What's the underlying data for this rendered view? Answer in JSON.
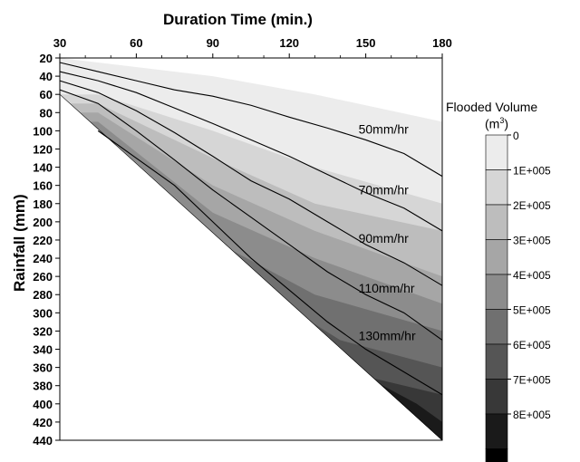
{
  "chart_data": {
    "type": "contour",
    "title": "Duration Time (min.)",
    "xlabel": "Duration Time (min.)",
    "ylabel": "Rainfall (mm)",
    "x_ticks": [
      30,
      60,
      90,
      120,
      150,
      180
    ],
    "y_ticks": [
      20,
      40,
      60,
      80,
      100,
      120,
      140,
      160,
      180,
      200,
      220,
      240,
      260,
      280,
      300,
      320,
      340,
      360,
      380,
      400,
      420,
      440
    ],
    "xlim": [
      30,
      180
    ],
    "ylim": [
      20,
      440
    ],
    "x_axis_position": "top",
    "y_axis_inverted": true,
    "legend": {
      "title": "Flooded Volume",
      "unit": "(m",
      "unit_sup": "3",
      "unit_close": ")",
      "position": "right",
      "levels": [
        "0",
        "1E+005",
        "2E+005",
        "3E+005",
        "4E+005",
        "5E+005",
        "6E+005",
        "7E+005",
        "8E+005"
      ],
      "colors": [
        "#ececec",
        "#d6d6d6",
        "#bdbdbd",
        "#a6a6a6",
        "#8c8c8c",
        "#707070",
        "#555555",
        "#383838",
        "#1a1a1a",
        "#000000"
      ]
    },
    "filled_bands": [
      {
        "level": 0,
        "color": "#ececec",
        "upper": [
          [
            30,
            20
          ],
          [
            90,
            40
          ],
          [
            130,
            60
          ],
          [
            180,
            90
          ]
        ]
      },
      {
        "level": 1,
        "color": "#d6d6d6",
        "upper": [
          [
            45,
            60
          ],
          [
            90,
            100
          ],
          [
            130,
            140
          ],
          [
            180,
            180
          ]
        ]
      },
      {
        "level": 2,
        "color": "#bdbdbd",
        "upper": [
          [
            45,
            70
          ],
          [
            90,
            130
          ],
          [
            130,
            180
          ],
          [
            180,
            210
          ]
        ]
      },
      {
        "level": 3,
        "color": "#a6a6a6",
        "upper": [
          [
            45,
            80
          ],
          [
            90,
            160
          ],
          [
            130,
            210
          ],
          [
            180,
            260
          ]
        ]
      },
      {
        "level": 4,
        "color": "#8c8c8c",
        "upper": [
          [
            45,
            90
          ],
          [
            90,
            190
          ],
          [
            130,
            240
          ],
          [
            180,
            290
          ]
        ]
      },
      {
        "level": 5,
        "color": "#707070",
        "upper": [
          [
            50,
            110
          ],
          [
            90,
            220
          ],
          [
            130,
            280
          ],
          [
            180,
            320
          ]
        ]
      },
      {
        "level": 6,
        "color": "#555555",
        "upper": [
          [
            60,
            140
          ],
          [
            100,
            260
          ],
          [
            140,
            330
          ],
          [
            180,
            360
          ]
        ]
      },
      {
        "level": 7,
        "color": "#383838",
        "upper": [
          [
            80,
            210
          ],
          [
            120,
            320
          ],
          [
            150,
            370
          ],
          [
            180,
            390
          ]
        ]
      },
      {
        "level": 8,
        "color": "#1a1a1a",
        "upper": [
          [
            120,
            320
          ],
          [
            150,
            370
          ],
          [
            170,
            400
          ],
          [
            180,
            420
          ]
        ]
      }
    ],
    "isolines": [
      {
        "name": "50mm/hr",
        "points": [
          [
            30,
            25
          ],
          [
            45,
            35
          ],
          [
            60,
            45
          ],
          [
            75,
            55
          ],
          [
            90,
            62
          ],
          [
            105,
            72
          ],
          [
            120,
            85
          ],
          [
            135,
            97
          ],
          [
            150,
            110
          ],
          [
            165,
            125
          ],
          [
            180,
            150
          ]
        ]
      },
      {
        "name": "70mm/hr",
        "points": [
          [
            30,
            35
          ],
          [
            45,
            45
          ],
          [
            60,
            58
          ],
          [
            75,
            75
          ],
          [
            90,
            92
          ],
          [
            105,
            110
          ],
          [
            120,
            128
          ],
          [
            135,
            148
          ],
          [
            150,
            168
          ],
          [
            165,
            185
          ],
          [
            180,
            210
          ]
        ]
      },
      {
        "name": "90mm/hr",
        "points": [
          [
            30,
            45
          ],
          [
            45,
            58
          ],
          [
            60,
            78
          ],
          [
            75,
            102
          ],
          [
            90,
            128
          ],
          [
            105,
            155
          ],
          [
            120,
            175
          ],
          [
            135,
            200
          ],
          [
            150,
            225
          ],
          [
            165,
            245
          ],
          [
            180,
            270
          ]
        ]
      },
      {
        "name": "110mm/hr",
        "points": [
          [
            30,
            55
          ],
          [
            45,
            70
          ],
          [
            60,
            100
          ],
          [
            75,
            132
          ],
          [
            90,
            165
          ],
          [
            105,
            195
          ],
          [
            120,
            225
          ],
          [
            135,
            255
          ],
          [
            150,
            280
          ],
          [
            165,
            300
          ],
          [
            180,
            330
          ]
        ]
      },
      {
        "name": "130mm/hr",
        "points": [
          [
            45,
            100
          ],
          [
            60,
            130
          ],
          [
            75,
            160
          ],
          [
            90,
            200
          ],
          [
            105,
            240
          ],
          [
            120,
            275
          ],
          [
            135,
            310
          ],
          [
            150,
            340
          ],
          [
            165,
            365
          ],
          [
            180,
            390
          ]
        ]
      }
    ],
    "isoline_labels": [
      {
        "text": "50mm/hr",
        "x": 150,
        "y": 103
      },
      {
        "text": "70mm/hr",
        "x": 150,
        "y": 170
      },
      {
        "text": "90mm/hr",
        "x": 150,
        "y": 223
      },
      {
        "text": "110mm/hr",
        "x": 150,
        "y": 278
      },
      {
        "text": "130mm/hr",
        "x": 150,
        "y": 330
      }
    ]
  }
}
